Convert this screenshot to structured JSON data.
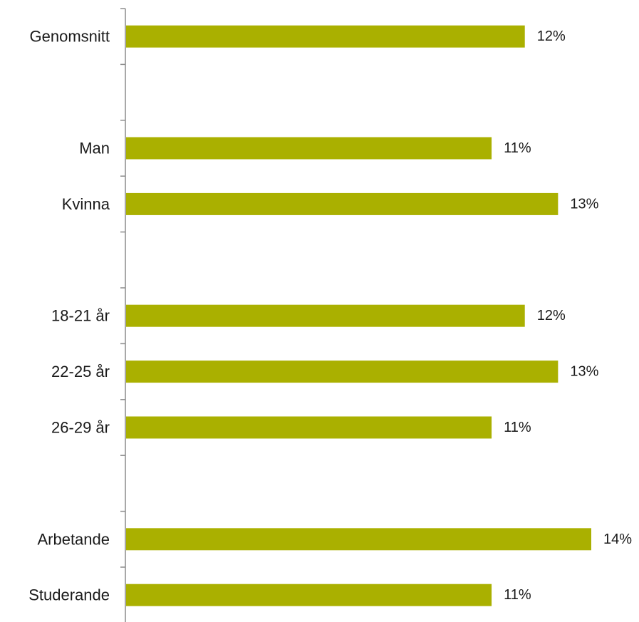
{
  "chart_data": {
    "type": "bar",
    "orientation": "horizontal",
    "categories": [
      "Genomsnitt",
      "",
      "Man",
      "Kvinna",
      "",
      "18-21 år",
      "22-25 år",
      "26-29 år",
      "",
      "Arbetande",
      "Studerande"
    ],
    "values": [
      12,
      null,
      11,
      13,
      null,
      12,
      13,
      11,
      null,
      14,
      11
    ],
    "value_labels": [
      "12%",
      "",
      "11%",
      "13%",
      "",
      "12%",
      "13%",
      "11%",
      "",
      "14%",
      "11%"
    ],
    "xlim": [
      0,
      14
    ],
    "grid": false,
    "legend": "none",
    "bar_color": "#aab000"
  }
}
